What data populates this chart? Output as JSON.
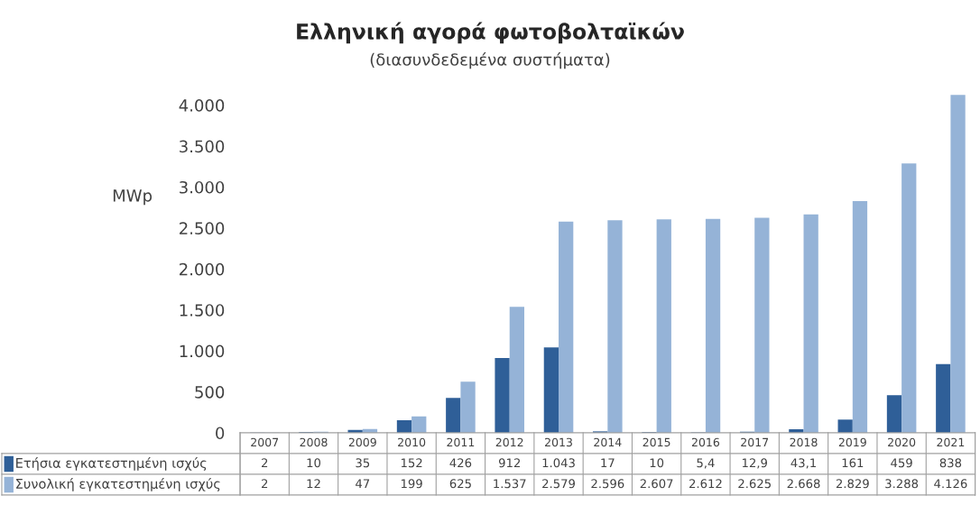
{
  "chart_data": {
    "type": "bar",
    "title": "Ελληνική αγορά φωτοβολταϊκών",
    "subtitle": "(διασυνδεδεμένα συστήματα)",
    "ylabel": "MWp",
    "categories": [
      "2007",
      "2008",
      "2009",
      "2010",
      "2011",
      "2012",
      "2013",
      "2014",
      "2015",
      "2016",
      "2017",
      "2018",
      "2019",
      "2020",
      "2021"
    ],
    "series": [
      {
        "name": "Ετήσια εγκατεστημένη ισχύς",
        "color": "#2f5f98",
        "values": [
          2,
          10,
          35,
          152,
          426,
          912,
          1043,
          17,
          10,
          5.4,
          12.9,
          43.1,
          161,
          459,
          838
        ],
        "value_labels": [
          "2",
          "10",
          "35",
          "152",
          "426",
          "912",
          "1.043",
          "17",
          "10",
          "5,4",
          "12,9",
          "43,1",
          "161",
          "459",
          "838"
        ]
      },
      {
        "name": "Συνολική εγκατεστημένη ισχύς",
        "color": "#95b3d7",
        "values": [
          2,
          12,
          47,
          199,
          625,
          1537,
          2579,
          2596,
          2607,
          2612,
          2625,
          2668,
          2829,
          3288,
          4126
        ],
        "value_labels": [
          "2",
          "12",
          "47",
          "199",
          "625",
          "1.537",
          "2.579",
          "2.596",
          "2.607",
          "2.612",
          "2.625",
          "2.668",
          "2.829",
          "3.288",
          "4.126"
        ]
      }
    ],
    "ylim": [
      0,
      4150
    ],
    "yticks": [
      {
        "value": 0,
        "label": "0"
      },
      {
        "value": 500,
        "label": "500"
      },
      {
        "value": 1000,
        "label": "1.000"
      },
      {
        "value": 1500,
        "label": "1.500"
      },
      {
        "value": 2000,
        "label": "2.000"
      },
      {
        "value": 2500,
        "label": "2.500"
      },
      {
        "value": 3000,
        "label": "3.000"
      },
      {
        "value": 3500,
        "label": "3.500"
      },
      {
        "value": 4000,
        "label": "4.000"
      }
    ],
    "grid": false,
    "legend": "bottom"
  }
}
